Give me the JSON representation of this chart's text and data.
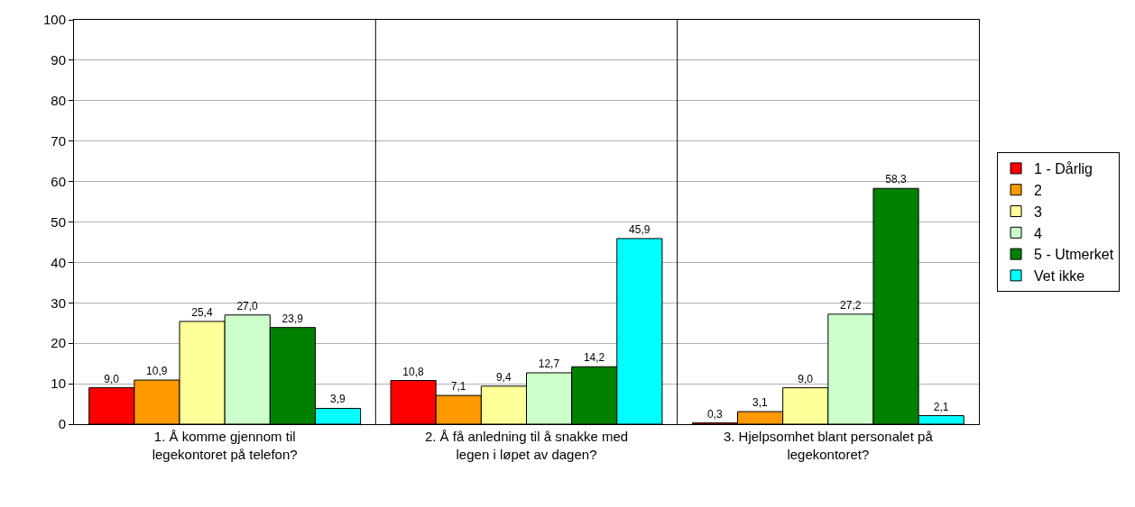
{
  "chart_data": {
    "type": "bar",
    "categories": [
      "1. Å komme gjennom til legekontoret på telefon?",
      "2. Å få anledning til å snakke med legen i løpet av dagen?",
      "3. Hjelpsomhet blant personalet på legekontoret?"
    ],
    "series": [
      {
        "name": "1 - Dårlig",
        "color": "#ff0000",
        "values": [
          9.0,
          10.8,
          0.3
        ],
        "value_labels": [
          "9,0",
          "10,8",
          "0,3"
        ]
      },
      {
        "name": "2",
        "color": "#ff9900",
        "values": [
          10.9,
          7.1,
          3.1
        ],
        "value_labels": [
          "10,9",
          "7,1",
          "3,1"
        ]
      },
      {
        "name": "3",
        "color": "#ffff99",
        "values": [
          25.4,
          9.4,
          9.0
        ],
        "value_labels": [
          "25,4",
          "9,4",
          "9,0"
        ]
      },
      {
        "name": "4",
        "color": "#ccffcc",
        "values": [
          27.0,
          12.7,
          27.2
        ],
        "value_labels": [
          "27,0",
          "12,7",
          "27,2"
        ]
      },
      {
        "name": "5 - Utmerket",
        "color": "#008000",
        "values": [
          23.9,
          14.2,
          58.3
        ],
        "value_labels": [
          "23,9",
          "14,2",
          "58,3"
        ]
      },
      {
        "name": "Vet ikke",
        "color": "#00ffff",
        "values": [
          3.9,
          45.9,
          2.1
        ],
        "value_labels": [
          "3,9",
          "45,9",
          "2,1"
        ]
      }
    ],
    "ylim": [
      0,
      100
    ],
    "yticks": [
      0,
      10,
      20,
      30,
      40,
      50,
      60,
      70,
      80,
      90,
      100
    ],
    "grid": true,
    "legend": "right"
  }
}
